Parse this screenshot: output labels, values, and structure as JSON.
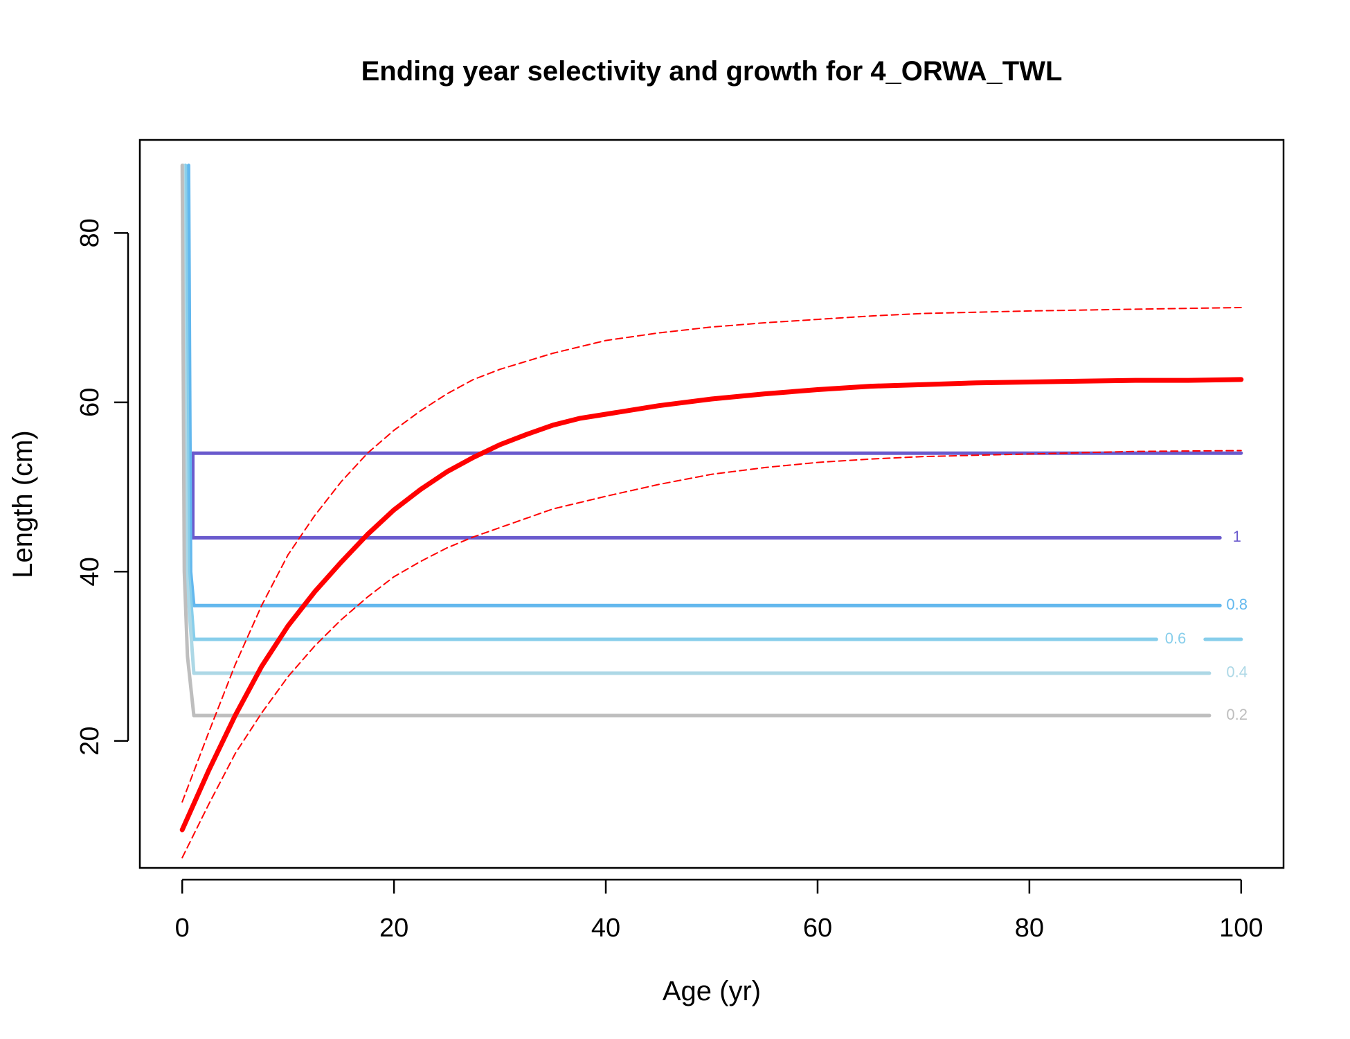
{
  "chart_data": {
    "type": "line",
    "title": "Ending year selectivity and growth for 4_ORWA_TWL",
    "xlabel": "Age (yr)",
    "ylabel": "Length (cm)",
    "xlim": [
      -4,
      104
    ],
    "ylim": [
      5,
      91
    ],
    "xticks": [
      0,
      20,
      40,
      60,
      80,
      100
    ],
    "yticks": [
      20,
      40,
      60,
      80
    ],
    "grid": false,
    "legend": "none",
    "contours": [
      {
        "level": "1",
        "color": "#6a5acd",
        "segments": [
          [
            [
              1,
              54
            ],
            [
              100,
              54
            ]
          ],
          [
            [
              1,
              54
            ],
            [
              1,
              44
            ]
          ],
          [
            [
              1,
              44
            ],
            [
              98,
              44
            ]
          ]
        ],
        "label_at": [
          99.6,
          44
        ]
      },
      {
        "level": "0.8",
        "color": "#63b8ee",
        "segments": [
          [
            [
              0.6,
              88
            ],
            [
              0.8,
              40
            ],
            [
              1.1,
              36
            ]
          ],
          [
            [
              1.1,
              36
            ],
            [
              98,
              36
            ]
          ]
        ],
        "label_at": [
          99.6,
          36
        ]
      },
      {
        "level": "0.6",
        "color": "#87ceeb",
        "segments": [
          [
            [
              0.3,
              88
            ],
            [
              0.6,
              40
            ],
            [
              1.1,
              32
            ]
          ],
          [
            [
              1.1,
              32
            ],
            [
              92,
              32
            ]
          ],
          [
            [
              96.6,
              32
            ],
            [
              100,
              32
            ]
          ]
        ],
        "label_at": [
          93.8,
          32
        ]
      },
      {
        "level": "0.4",
        "color": "#add8e6",
        "segments": [
          [
            [
              0.1,
              88
            ],
            [
              0.4,
              40
            ],
            [
              1.1,
              28
            ]
          ],
          [
            [
              1.1,
              28
            ],
            [
              97,
              28
            ]
          ]
        ],
        "label_at": [
          99.6,
          28
        ]
      },
      {
        "level": "0.2",
        "color": "#bebebe",
        "segments": [
          [
            [
              0,
              88
            ],
            [
              0.2,
              40
            ],
            [
              0.5,
              30
            ],
            [
              1.1,
              23
            ]
          ],
          [
            [
              1.1,
              23
            ],
            [
              97,
              23
            ]
          ]
        ],
        "label_at": [
          99.6,
          23
        ]
      }
    ],
    "growth": {
      "color": "#ff0000",
      "mean": {
        "x": [
          0,
          2.5,
          5,
          7.5,
          10,
          12.5,
          15,
          17.5,
          20,
          22.5,
          25,
          27.5,
          30,
          32.5,
          35,
          37.5,
          40,
          45,
          50,
          55,
          60,
          65,
          70,
          75,
          80,
          85,
          90,
          95,
          100
        ],
        "y": [
          9.5,
          16.5,
          23.0,
          28.8,
          33.6,
          37.6,
          41.1,
          44.4,
          47.3,
          49.7,
          51.8,
          53.5,
          55.0,
          56.2,
          57.3,
          58.1,
          58.6,
          59.6,
          60.4,
          61.0,
          61.5,
          61.9,
          62.1,
          62.3,
          62.4,
          62.5,
          62.6,
          62.6,
          62.7
        ]
      },
      "upper": {
        "x": [
          0,
          2.5,
          5,
          7.5,
          10,
          12.5,
          15,
          17.5,
          20,
          22.5,
          25,
          27.5,
          30,
          35,
          40,
          45,
          50,
          55,
          60,
          65,
          70,
          80,
          90,
          100
        ],
        "y": [
          12.8,
          21.0,
          29.0,
          36.0,
          42.0,
          46.6,
          50.6,
          54.0,
          56.7,
          59.0,
          61.0,
          62.7,
          63.9,
          65.8,
          67.3,
          68.2,
          68.9,
          69.4,
          69.8,
          70.2,
          70.5,
          70.8,
          71.0,
          71.2
        ]
      },
      "lower": {
        "x": [
          0,
          2.5,
          5,
          7.5,
          10,
          12.5,
          15,
          17.5,
          20,
          22.5,
          25,
          27.5,
          30,
          35,
          40,
          45,
          50,
          55,
          60,
          65,
          70,
          80,
          90,
          100
        ],
        "y": [
          6.2,
          12.5,
          18.5,
          23.3,
          27.6,
          31.2,
          34.3,
          37.0,
          39.4,
          41.2,
          42.8,
          44.1,
          45.2,
          47.4,
          48.9,
          50.3,
          51.5,
          52.3,
          52.9,
          53.3,
          53.6,
          53.9,
          54.2,
          54.3
        ]
      }
    }
  }
}
